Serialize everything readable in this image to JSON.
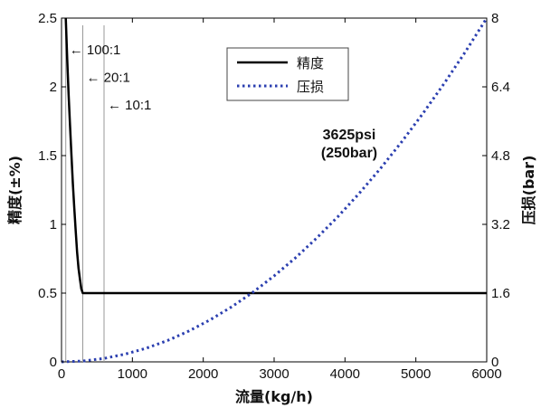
{
  "chart_data": {
    "type": "line",
    "xlabel": "流量(kg/h)",
    "ylabel_left": "精度(±%)",
    "ylabel_right": "压损(bar)",
    "xlim": [
      0,
      6000
    ],
    "ylim_left": [
      0,
      2.5
    ],
    "ylim_right": [
      0,
      8
    ],
    "x_ticks": [
      "0",
      "1000",
      "2000",
      "3000",
      "4000",
      "5000",
      "6000"
    ],
    "y_left_ticks": [
      "0",
      "0.5",
      "1",
      "1.5",
      "2",
      "2.5"
    ],
    "y_right_ticks": [
      "0",
      "1.6",
      "3.2",
      "4.8",
      "6.4",
      "8"
    ],
    "grid": false,
    "legend_position": "top-center",
    "series": [
      {
        "name": "精度",
        "axis": "left",
        "style": "solid",
        "color": "#000000",
        "x": [
          60,
          80,
          100,
          120,
          140,
          160,
          180,
          200,
          220,
          240,
          260,
          280,
          300,
          350,
          400,
          500,
          1000,
          2000,
          3000,
          4000,
          5000,
          6000
        ],
        "y": [
          2.5,
          2.2,
          1.95,
          1.72,
          1.5,
          1.3,
          1.12,
          0.95,
          0.8,
          0.68,
          0.6,
          0.53,
          0.5,
          0.5,
          0.5,
          0.5,
          0.5,
          0.5,
          0.5,
          0.5,
          0.5,
          0.5
        ]
      },
      {
        "name": "压损",
        "axis": "right",
        "style": "dotted",
        "color": "#2b3fb0",
        "x": [
          0,
          300,
          600,
          900,
          1200,
          1500,
          1800,
          2100,
          2400,
          2700,
          3000,
          3300,
          3600,
          3900,
          4200,
          4500,
          4800,
          5100,
          5400,
          5700,
          6000
        ],
        "y": [
          0,
          0.02,
          0.08,
          0.18,
          0.32,
          0.5,
          0.72,
          0.98,
          1.28,
          1.62,
          2.0,
          2.42,
          2.88,
          3.38,
          3.92,
          4.5,
          5.12,
          5.78,
          6.48,
          7.22,
          8.0
        ]
      }
    ],
    "annotations": [
      {
        "text": "← 100:1",
        "x": 60,
        "y": 2.27
      },
      {
        "text": "← 20:1",
        "x": 300,
        "y": 2.07
      },
      {
        "text": "← 10:1",
        "x": 600,
        "y": 1.87
      }
    ],
    "vertical_lines_x": [
      60,
      300,
      600
    ],
    "center_annotation": [
      "3625psi",
      "(250bar)"
    ]
  }
}
